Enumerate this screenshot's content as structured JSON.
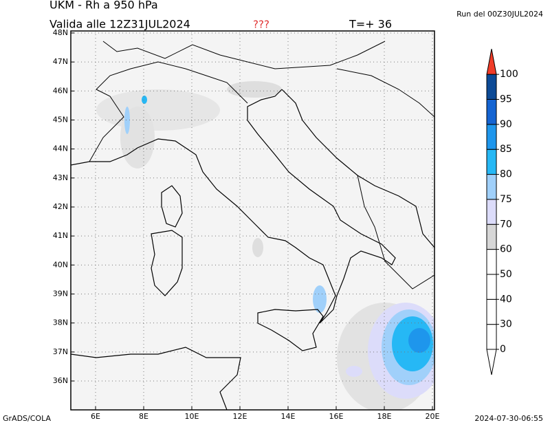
{
  "header": {
    "title": "UKM - Rh a 950 hPa",
    "run": "Run del 00Z30JUL2024",
    "valid": "Valida alle 12Z31JUL2024",
    "flag": "???",
    "step": "T=+ 36"
  },
  "map": {
    "lat_labels": [
      "36N",
      "37N",
      "38N",
      "39N",
      "40N",
      "41N",
      "42N",
      "43N",
      "44N",
      "45N",
      "46N",
      "47N",
      "48N"
    ],
    "lon_labels": [
      "6E",
      "8E",
      "10E",
      "12E",
      "14E",
      "16E",
      "18E",
      "20E"
    ]
  },
  "colorbar": {
    "labels": [
      "0",
      "30",
      "40",
      "50",
      "60",
      "70",
      "75",
      "80",
      "85",
      "90",
      "95",
      "100"
    ],
    "colors": [
      "#ffffff",
      "#ffffff",
      "#ffffff",
      "#ffffff",
      "#ffffff",
      "#d7d7d7",
      "#dcdcfa",
      "#a0d0fa",
      "#26b8f5",
      "#1e96ec",
      "#1464d2",
      "#0c4a96",
      "#f03c28"
    ]
  },
  "footer": {
    "left": "GrADS/COLA",
    "right": "2024-07-30-06:55"
  }
}
